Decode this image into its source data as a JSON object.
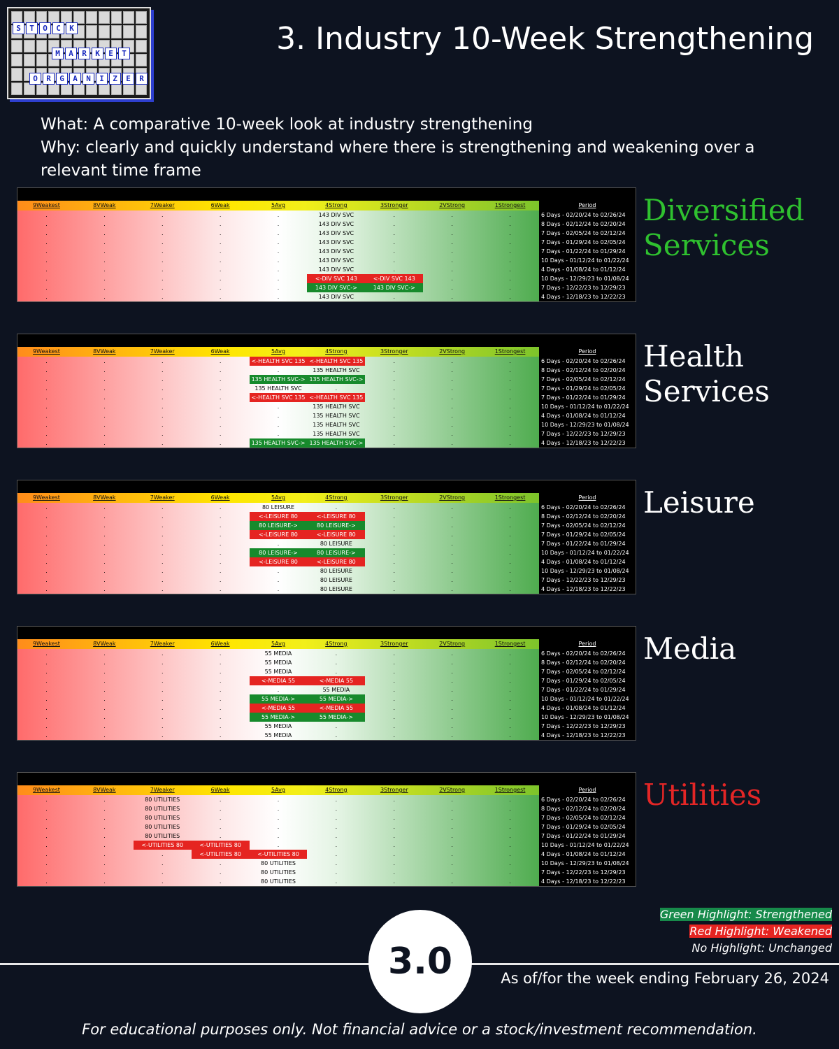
{
  "logo": {
    "row1": [
      "S",
      "T",
      "O",
      "C",
      "K"
    ],
    "row2": [
      "M",
      "A",
      "R",
      "K",
      "E",
      "T"
    ],
    "row3": [
      "O",
      "R",
      "G",
      "A",
      "N",
      "I",
      "Z",
      "E",
      "R"
    ]
  },
  "title": "3. Industry 10-Week Strengthening",
  "desc": {
    "what": "What: A comparative 10-week look at industry strengthening",
    "why": "Why: clearly and quickly understand where there is strengthening and weakening over a relevant time frame"
  },
  "headers": [
    "9Weakest",
    "8VWeak",
    "7Weaker",
    "6Weak",
    "5Avg",
    "4Strong",
    "3Stronger",
    "2VStrong",
    "1Strongest"
  ],
  "period_header": "Period",
  "periods": [
    "6 Days - 02/20/24 to 02/26/24",
    "8 Days - 02/12/24 to 02/20/24",
    "7 Days - 02/05/24 to 02/12/24",
    "7 Days - 01/29/24 to 02/05/24",
    "7 Days - 01/22/24 to 01/29/24",
    "10 Days - 01/12/24 to 01/22/24",
    "4 Days - 01/08/24 to 01/12/24",
    "10 Days - 12/29/23 to 01/08/24",
    "7 Days - 12/22/23 to 12/29/23",
    "4 Days - 12/18/23 to 12/22/23"
  ],
  "panels": [
    {
      "label": "Diversified Services",
      "color": "#2fc12f",
      "rows": [
        [
          [
            5,
            "143 DIV SVC",
            ""
          ]
        ],
        [
          [
            5,
            "143 DIV SVC",
            ""
          ]
        ],
        [
          [
            5,
            "143 DIV SVC",
            ""
          ]
        ],
        [
          [
            5,
            "143 DIV SVC",
            ""
          ]
        ],
        [
          [
            5,
            "143 DIV SVC",
            ""
          ]
        ],
        [
          [
            5,
            "143 DIV SVC",
            ""
          ]
        ],
        [
          [
            5,
            "143 DIV SVC",
            ""
          ]
        ],
        [
          [
            5,
            "<-DIV SVC 143",
            "r"
          ],
          [
            6,
            "<-DIV SVC 143",
            "r"
          ]
        ],
        [
          [
            5,
            "143 DIV SVC->",
            "g"
          ],
          [
            6,
            "143 DIV SVC->",
            "g"
          ]
        ],
        [
          [
            5,
            "143 DIV SVC",
            ""
          ]
        ]
      ]
    },
    {
      "label": "Health Services",
      "color": "#ffffff",
      "rows": [
        [
          [
            4,
            "<-HEALTH SVC 135",
            "r"
          ],
          [
            5,
            "<-HEALTH SVC 135",
            "r"
          ]
        ],
        [
          [
            5,
            "135 HEALTH SVC",
            ""
          ]
        ],
        [
          [
            4,
            "135 HEALTH SVC->",
            "g"
          ],
          [
            5,
            "135 HEALTH SVC->",
            "g"
          ]
        ],
        [
          [
            4,
            "135 HEALTH SVC",
            ""
          ]
        ],
        [
          [
            4,
            "<-HEALTH SVC 135",
            "r"
          ],
          [
            5,
            "<-HEALTH SVC 135",
            "r"
          ]
        ],
        [
          [
            5,
            "135 HEALTH SVC",
            ""
          ]
        ],
        [
          [
            5,
            "135 HEALTH SVC",
            ""
          ]
        ],
        [
          [
            5,
            "135 HEALTH SVC",
            ""
          ]
        ],
        [
          [
            5,
            "135 HEALTH SVC",
            ""
          ]
        ],
        [
          [
            4,
            "135 HEALTH SVC->",
            "g"
          ],
          [
            5,
            "135 HEALTH SVC->",
            "g"
          ]
        ]
      ]
    },
    {
      "label": "Leisure",
      "color": "#ffffff",
      "rows": [
        [
          [
            4,
            "80 LEISURE",
            ""
          ]
        ],
        [
          [
            4,
            "<-LEISURE 80",
            "r"
          ],
          [
            5,
            "<-LEISURE 80",
            "r"
          ]
        ],
        [
          [
            4,
            "80 LEISURE->",
            "g"
          ],
          [
            5,
            "80 LEISURE->",
            "g"
          ]
        ],
        [
          [
            4,
            "<-LEISURE 80",
            "r"
          ],
          [
            5,
            "<-LEISURE 80",
            "r"
          ]
        ],
        [
          [
            5,
            "80 LEISURE",
            ""
          ]
        ],
        [
          [
            4,
            "80 LEISURE->",
            "g"
          ],
          [
            5,
            "80 LEISURE->",
            "g"
          ]
        ],
        [
          [
            4,
            "<-LEISURE 80",
            "r"
          ],
          [
            5,
            "<-LEISURE 80",
            "r"
          ]
        ],
        [
          [
            5,
            "80 LEISURE",
            ""
          ]
        ],
        [
          [
            5,
            "80 LEISURE",
            ""
          ]
        ],
        [
          [
            5,
            "80 LEISURE",
            ""
          ]
        ]
      ]
    },
    {
      "label": "Media",
      "color": "#ffffff",
      "rows": [
        [
          [
            4,
            "55 MEDIA",
            ""
          ]
        ],
        [
          [
            4,
            "55 MEDIA",
            ""
          ]
        ],
        [
          [
            4,
            "55 MEDIA",
            ""
          ]
        ],
        [
          [
            4,
            "<-MEDIA 55",
            "r"
          ],
          [
            5,
            "<-MEDIA 55",
            "r"
          ]
        ],
        [
          [
            5,
            "55 MEDIA",
            ""
          ]
        ],
        [
          [
            4,
            "55 MEDIA->",
            "g"
          ],
          [
            5,
            "55 MEDIA->",
            "g"
          ]
        ],
        [
          [
            4,
            "<-MEDIA 55",
            "r"
          ],
          [
            5,
            "<-MEDIA 55",
            "r"
          ]
        ],
        [
          [
            4,
            "55 MEDIA->",
            "g"
          ],
          [
            5,
            "55 MEDIA->",
            "g"
          ]
        ],
        [
          [
            4,
            "55 MEDIA",
            ""
          ]
        ],
        [
          [
            4,
            "55 MEDIA",
            ""
          ]
        ]
      ]
    },
    {
      "label": "Utilities",
      "color": "#e32626",
      "rows": [
        [
          [
            2,
            "80 UTILITIES",
            ""
          ]
        ],
        [
          [
            2,
            "80 UTILITIES",
            ""
          ]
        ],
        [
          [
            2,
            "80 UTILITIES",
            ""
          ]
        ],
        [
          [
            2,
            "80 UTILITIES",
            ""
          ]
        ],
        [
          [
            2,
            "80 UTILITIES",
            ""
          ]
        ],
        [
          [
            2,
            "<-UTILITIES 80",
            "r"
          ],
          [
            3,
            "<-UTILITIES 80",
            "r"
          ]
        ],
        [
          [
            3,
            "<-UTILITIES 80",
            "r"
          ],
          [
            4,
            "<-UTILITIES 80",
            "r"
          ]
        ],
        [
          [
            4,
            "80 UTILITIES",
            ""
          ]
        ],
        [
          [
            4,
            "80 UTILITIES",
            ""
          ]
        ],
        [
          [
            4,
            "80 UTILITIES",
            ""
          ]
        ]
      ]
    }
  ],
  "legend": {
    "green": "Green Highlight: Strengthened",
    "red": "Red Highlight: Weakened",
    "none": "No Highlight: Unchanged",
    "green_color": "#178a4a",
    "red_color": "#e52421"
  },
  "badge": "3.0",
  "as_of": "As of/for the week ending February 26, 2024",
  "disclaimer": "For educational purposes only. Not financial advice or a stock/investment recommendation."
}
